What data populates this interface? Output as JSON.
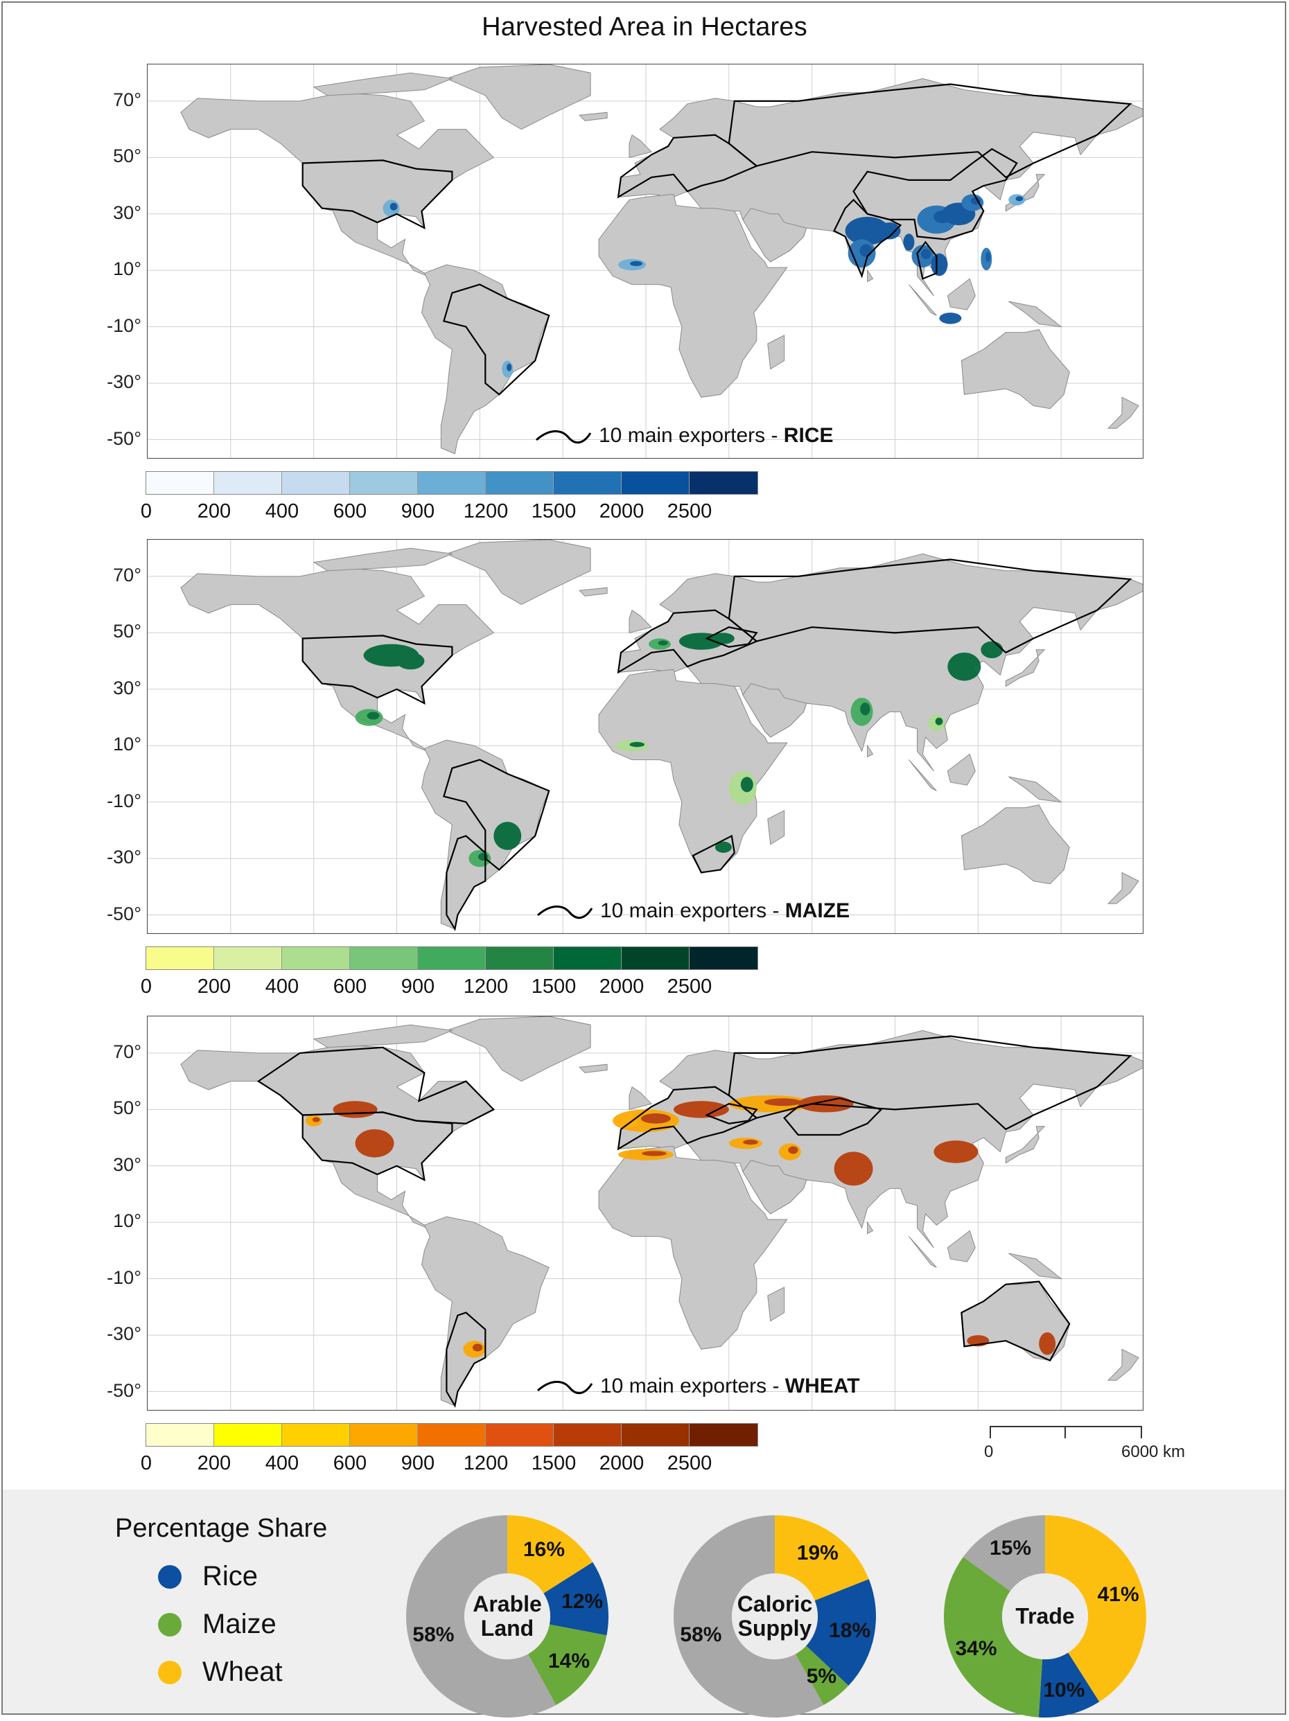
{
  "title": "Harvested Area in Hectares",
  "latitude_labels": [
    "70°",
    "50°",
    "30°",
    "10°",
    "-10°",
    "-30°",
    "-50°"
  ],
  "maps": [
    {
      "crop": "RICE",
      "exporters_prefix": "10 main exporters - ",
      "colorbar_colors": [
        "#f7fbff",
        "#deebf7",
        "#c6dbef",
        "#9ecae1",
        "#6baed6",
        "#4292c6",
        "#2171b5",
        "#08519c",
        "#08306b"
      ],
      "hotspot_colors": [
        "#2171b5",
        "#08519c",
        "#6baed6"
      ]
    },
    {
      "crop": "MAIZE",
      "exporters_prefix": "10 main exporters - ",
      "colorbar_colors": [
        "#f7fc8a",
        "#d9f0a3",
        "#addd8e",
        "#78c679",
        "#41ab5d",
        "#238443",
        "#006837",
        "#004529",
        "#00252a"
      ],
      "hotspot_colors": [
        "#41ab5d",
        "#006837",
        "#addd8e"
      ]
    },
    {
      "crop": "WHEAT",
      "exporters_prefix": "10 main exporters - ",
      "colorbar_colors": [
        "#ffffcc",
        "#ffff00",
        "#fed000",
        "#fca800",
        "#f07000",
        "#e05010",
        "#b83c08",
        "#983000",
        "#702000"
      ],
      "hotspot_colors": [
        "#fca800",
        "#b83c08",
        "#fed000"
      ]
    }
  ],
  "colorbar_ticks": [
    "0",
    "200",
    "400",
    "600",
    "900",
    "1200",
    "1500",
    "2000",
    "2500"
  ],
  "scale_bar": {
    "start": "0",
    "end": "6000 km"
  },
  "percentage_share": {
    "title": "Percentage Share",
    "legend": [
      {
        "name": "Rice",
        "color": "#0d4fa0"
      },
      {
        "name": "Maize",
        "color": "#6aaa3a"
      },
      {
        "name": "Wheat",
        "color": "#fdbf0f"
      }
    ],
    "other_color": "#a8a8a8",
    "donuts": [
      {
        "center": [
          "Arable",
          "Land"
        ],
        "wheat": 16,
        "rice": 12,
        "maize": 14,
        "other": 58,
        "labels": {
          "wheat": "16%",
          "rice": "12%",
          "maize": "14%",
          "other": "58%"
        }
      },
      {
        "center": [
          "Caloric",
          "Supply"
        ],
        "wheat": 19,
        "rice": 18,
        "maize": 5,
        "other": 58,
        "labels": {
          "wheat": "19%",
          "rice": "18%",
          "maize": "5%",
          "other": "58%"
        }
      },
      {
        "center": [
          "Trade"
        ],
        "wheat": 41,
        "rice": 10,
        "maize": 34,
        "other": 15,
        "labels": {
          "wheat": "41%",
          "rice": "10%",
          "maize": "34%",
          "other": "15%"
        }
      }
    ]
  }
}
